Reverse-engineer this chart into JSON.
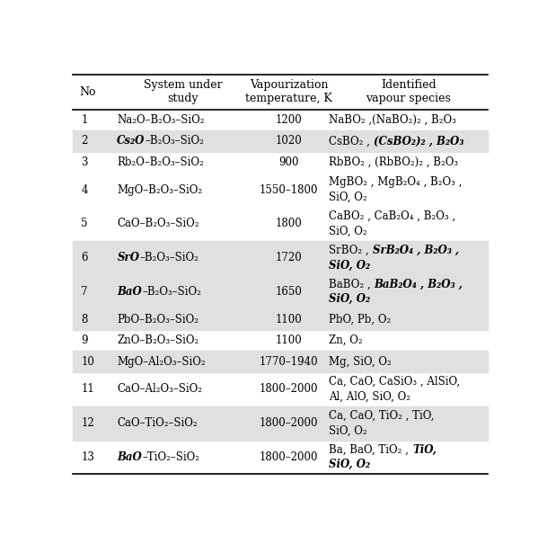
{
  "figsize": [
    6.09,
    5.95
  ],
  "dpi": 100,
  "shaded_rows": [
    2,
    6,
    7,
    8,
    10,
    12
  ],
  "shade_color": "#e0e0e0",
  "header_texts": [
    "No",
    "System under\nstudy",
    "Vapourization\ntemperature, K",
    "Identified\nvapour species"
  ],
  "rows": [
    {
      "no": "1",
      "system": [
        [
          "Na₂O–B₂O₃–SiO₂",
          "normal"
        ]
      ],
      "temp": "1200",
      "species": [
        [
          "NaBO₂ ,(NaBO₂)₂ , B₂O₃",
          "normal"
        ]
      ]
    },
    {
      "no": "2",
      "system": [
        [
          "Cs₂O",
          "bold_italic"
        ],
        [
          "–B₂O₃–SiO₂",
          "normal"
        ]
      ],
      "temp": "1020",
      "species": [
        [
          "CsBO₂ , ",
          "normal"
        ],
        [
          "(CsBO₂)₂ , B₂O₃",
          "bold_italic"
        ]
      ]
    },
    {
      "no": "3",
      "system": [
        [
          "Rb₂O–B₂O₃–SiO₂",
          "normal"
        ]
      ],
      "temp": "900",
      "species": [
        [
          "RbBO₂ , (RbBO₂)₂ , B₂O₃",
          "normal"
        ]
      ]
    },
    {
      "no": "4",
      "system": [
        [
          "MgO–B₂O₃–SiO₂",
          "normal"
        ]
      ],
      "temp": "1550–1800",
      "species": [
        [
          "MgBO₂ , MgB₂O₄ , B₂O₃ ,",
          "normal"
        ],
        [
          "SiO, O₂",
          "normal"
        ]
      ]
    },
    {
      "no": "5",
      "system": [
        [
          "CaO–B₂O₃–SiO₂",
          "normal"
        ]
      ],
      "temp": "1800",
      "species": [
        [
          "CaBO₂ , CaB₂O₄ , B₂O₃ ,",
          "normal"
        ],
        [
          "SiO, O₂",
          "normal"
        ]
      ]
    },
    {
      "no": "6",
      "system": [
        [
          "SrO",
          "bold_italic"
        ],
        [
          "–B₂O₃–SiO₂",
          "normal"
        ]
      ],
      "temp": "1720",
      "species": [
        [
          "SrBO₂ , ",
          "normal"
        ],
        [
          "SrB₂O₄ , B₂O₃ ,",
          "bold_italic"
        ],
        [
          "SiO, O₂",
          "bold_italic"
        ]
      ]
    },
    {
      "no": "7",
      "system": [
        [
          "BaO",
          "bold_italic"
        ],
        [
          "–B₂O₃–SiO₂",
          "normal"
        ]
      ],
      "temp": "1650",
      "species": [
        [
          "BaBO₂ , ",
          "normal"
        ],
        [
          "BaB₂O₄ , B₂O₃ ,",
          "bold_italic"
        ],
        [
          "SiO, O₂",
          "bold_italic"
        ]
      ]
    },
    {
      "no": "8",
      "system": [
        [
          "PbO–B₂O₃–SiO₂",
          "normal"
        ]
      ],
      "temp": "1100",
      "species": [
        [
          "PbO, Pb, O₂",
          "normal"
        ]
      ]
    },
    {
      "no": "9",
      "system": [
        [
          "ZnO–B₂O₃–SiO₂",
          "normal"
        ]
      ],
      "temp": "1100",
      "species": [
        [
          "Zn, O₂",
          "normal"
        ]
      ]
    },
    {
      "no": "10",
      "system": [
        [
          "MgO–Al₂O₃–SiO₂",
          "normal"
        ]
      ],
      "temp": "1770–1940",
      "species": [
        [
          "Mg, SiO, O₂",
          "normal"
        ]
      ]
    },
    {
      "no": "11",
      "system": [
        [
          "CaO–Al₂O₃–SiO₂",
          "normal"
        ]
      ],
      "temp": "1800–2000",
      "species": [
        [
          "Ca, CaO, CaSiO₃ , AlSiO,",
          "normal"
        ],
        [
          "Al, AlO, SiO, O₂",
          "normal"
        ]
      ]
    },
    {
      "no": "12",
      "system": [
        [
          "CaO–TiO₂–SiO₂",
          "normal"
        ]
      ],
      "temp": "1800–2000",
      "species": [
        [
          "Ca, CaO, TiO₂ , TiO,",
          "normal"
        ],
        [
          "SiO, O₂",
          "normal"
        ]
      ]
    },
    {
      "no": "13",
      "system": [
        [
          "BaO",
          "bold_italic"
        ],
        [
          "–TiO₂–SiO₂",
          "normal"
        ]
      ],
      "temp": "1800–2000",
      "species": [
        [
          "Ba, BaO, TiO₂ , ",
          "normal"
        ],
        [
          "TiO,",
          "bold_italic"
        ],
        [
          "SiO, O₂",
          "bold_italic"
        ]
      ]
    }
  ],
  "two_line_species": [
    4,
    5,
    6,
    7,
    11,
    12,
    13
  ],
  "two_line_species_split": {
    "4": 1,
    "5": 1,
    "6": 2,
    "7": 2,
    "11": 1,
    "12": 1,
    "13": 2
  }
}
